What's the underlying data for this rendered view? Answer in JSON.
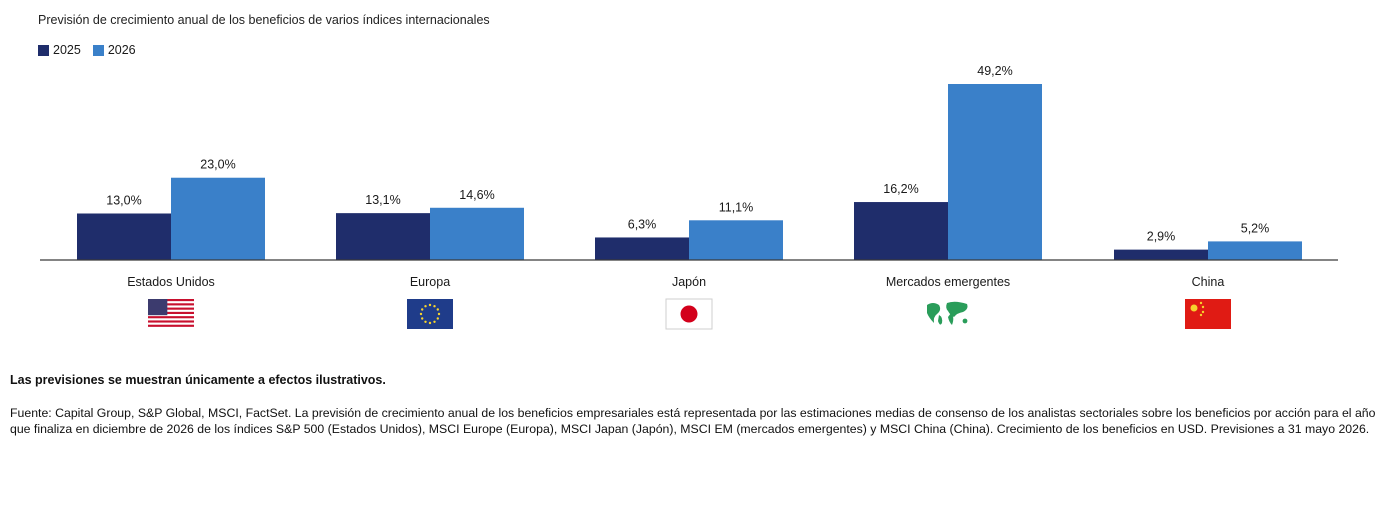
{
  "chart_data": {
    "type": "bar",
    "title": "Previsión de crecimiento anual de los beneficios de varios índices internacionales",
    "categories": [
      "Estados Unidos",
      "Europa",
      "Japón",
      "Mercados emergentes",
      "China"
    ],
    "series": [
      {
        "name": "2025",
        "values": [
          13.0,
          13.1,
          6.3,
          16.2,
          2.9
        ],
        "labels": [
          "13,0%",
          "13,1%",
          "6,3%",
          "16,2%",
          "2,9%"
        ],
        "color": "#1f2d6b"
      },
      {
        "name": "2026",
        "values": [
          23.0,
          14.6,
          11.1,
          49.2,
          5.2
        ],
        "labels": [
          "23,0%",
          "14,6%",
          "11,1%",
          "49,2%",
          "5,2%"
        ],
        "color": "#3a80c9"
      }
    ],
    "flag_icons": [
      "us-flag-icon",
      "eu-flag-icon",
      "japan-flag-icon",
      "world-map-icon",
      "china-flag-icon"
    ],
    "ylim": [
      0,
      50
    ],
    "grid": false,
    "legend_position": "top-left"
  },
  "footer": {
    "note": "Las previsiones se muestran únicamente a efectos ilustrativos.",
    "source": "Fuente: Capital Group, S&P Global, MSCI, FactSet. La previsión de crecimiento anual de los beneficios empresariales está representada por las estimaciones medias de consenso de los analistas sectoriales sobre los beneficios por acción para el año que finaliza en diciembre de 2026 de los índices S&P 500 (Estados Unidos), MSCI Europe (Europa), MSCI Japan (Japón), MSCI EM (mercados emergentes) y MSCI China (China). Crecimiento de los beneficios en USD. Previsiones a 31 mayo 2026."
  }
}
